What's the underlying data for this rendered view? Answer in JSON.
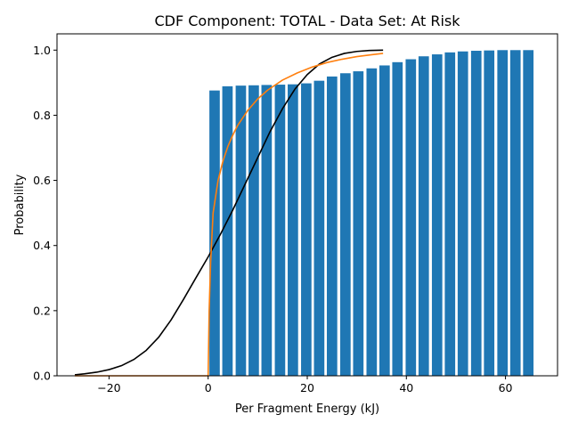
{
  "chart_data": {
    "type": "bar",
    "title": "CDF Component: TOTAL - Data Set: At Risk",
    "xlabel": "Per Fragment Energy (kJ)",
    "ylabel": "Probability",
    "xlim": [
      -30.5,
      70.5
    ],
    "ylim": [
      0.0,
      1.05
    ],
    "xticks": [
      -20,
      0,
      20,
      40,
      60
    ],
    "xtick_labels": [
      "−20",
      "0",
      "20",
      "40",
      "60"
    ],
    "yticks": [
      0.0,
      0.2,
      0.4,
      0.6,
      0.8,
      1.0
    ],
    "ytick_labels": [
      "0.0",
      "0.2",
      "0.4",
      "0.6",
      "0.8",
      "1.0"
    ],
    "grid": false,
    "bars": {
      "color": "#1f77b4",
      "width": 2.1,
      "x": [
        1.3,
        3.9,
        6.6,
        9.2,
        11.8,
        14.5,
        17.1,
        19.8,
        22.4,
        25.0,
        27.7,
        30.3,
        33.0,
        35.6,
        38.2,
        40.9,
        43.5,
        46.2,
        48.8,
        51.4,
        54.1,
        56.7,
        59.4,
        62.0,
        64.6
      ],
      "values": [
        0.876,
        0.889,
        0.891,
        0.892,
        0.893,
        0.894,
        0.895,
        0.898,
        0.906,
        0.919,
        0.929,
        0.935,
        0.944,
        0.953,
        0.963,
        0.972,
        0.981,
        0.987,
        0.993,
        0.996,
        0.998,
        0.999,
        1.0,
        1.0,
        1.0
      ]
    },
    "series": [
      {
        "color": "#000000",
        "type": "line",
        "x": [
          -26.9,
          -25,
          -22.5,
          -20,
          -17.5,
          -15,
          -12.5,
          -10,
          -7.5,
          -5,
          -2.5,
          0,
          2.5,
          5,
          7.5,
          10,
          12.5,
          15,
          17.5,
          20,
          22.5,
          25,
          27.5,
          30,
          32.5,
          35.3
        ],
        "y": [
          0.003,
          0.006,
          0.011,
          0.019,
          0.031,
          0.05,
          0.078,
          0.118,
          0.171,
          0.234,
          0.3,
          0.365,
          0.435,
          0.51,
          0.59,
          0.67,
          0.75,
          0.82,
          0.88,
          0.925,
          0.958,
          0.978,
          0.99,
          0.996,
          0.999,
          1.0
        ]
      },
      {
        "color": "#ff7f0e",
        "type": "line",
        "x": [
          -26.9,
          -0.2,
          0.0,
          0.2,
          0.5,
          1.0,
          2.0,
          3.0,
          4.0,
          5.0,
          6.0,
          8.0,
          10.0,
          12.0,
          15.0,
          18.0,
          21.0,
          24.0,
          27.0,
          30.0,
          33.0,
          35.3
        ],
        "y": [
          0.0,
          0.0,
          0.0,
          0.2,
          0.35,
          0.5,
          0.6,
          0.66,
          0.705,
          0.74,
          0.77,
          0.815,
          0.85,
          0.877,
          0.908,
          0.93,
          0.948,
          0.962,
          0.972,
          0.98,
          0.986,
          0.99
        ]
      }
    ]
  }
}
